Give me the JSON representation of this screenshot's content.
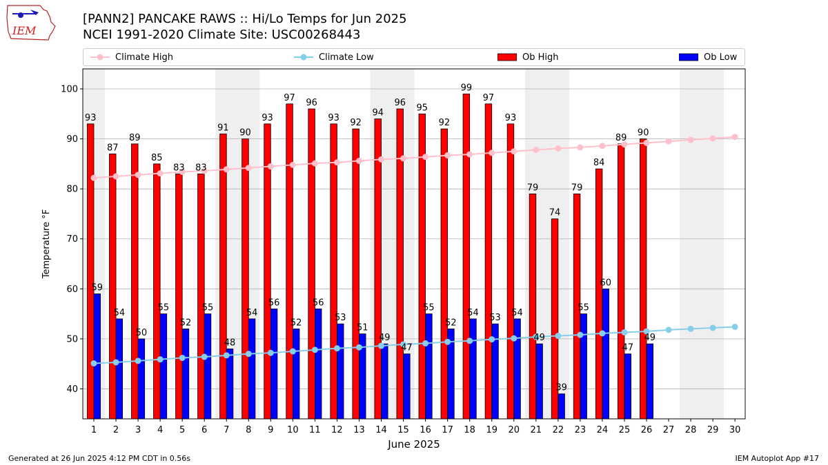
{
  "header": {
    "title_line1": "[PANN2] PANCAKE RAWS :: Hi/Lo Temps for Jun 2025",
    "title_line2": "NCEI 1991-2020 Climate Site: USC00268443",
    "logo_text": "IEM"
  },
  "footer": {
    "generated": "Generated at 26 Jun 2025 4:12 PM CDT in 0.56s",
    "app": "IEM Autoplot App #17"
  },
  "chart_data": {
    "type": "bar",
    "xlabel": "June 2025",
    "ylabel": "Temperature °F",
    "ylim": [
      34,
      104
    ],
    "yticks": [
      40,
      50,
      60,
      70,
      80,
      90,
      100
    ],
    "grid": "horizontal",
    "legend_position": "top",
    "weekend_shading": [
      1,
      7,
      8,
      14,
      15,
      21,
      22,
      28,
      29
    ],
    "categories": [
      "1",
      "2",
      "3",
      "4",
      "5",
      "6",
      "7",
      "8",
      "9",
      "10",
      "11",
      "12",
      "13",
      "14",
      "15",
      "16",
      "17",
      "18",
      "19",
      "20",
      "21",
      "22",
      "23",
      "24",
      "25",
      "26",
      "27",
      "28",
      "29",
      "30"
    ],
    "series": [
      {
        "name": "Climate High",
        "kind": "line",
        "color": "#ffc0cb",
        "values": [
          82.2,
          82.5,
          82.8,
          83.1,
          83.4,
          83.6,
          83.9,
          84.2,
          84.5,
          84.8,
          85.1,
          85.3,
          85.6,
          85.9,
          86.1,
          86.4,
          86.7,
          86.9,
          87.2,
          87.5,
          87.8,
          88.1,
          88.3,
          88.6,
          88.9,
          89.2,
          89.5,
          89.8,
          90.1,
          90.4
        ]
      },
      {
        "name": "Climate Low",
        "kind": "line",
        "color": "#87ceeb",
        "values": [
          45.1,
          45.3,
          45.6,
          45.9,
          46.2,
          46.4,
          46.7,
          47.0,
          47.2,
          47.5,
          47.8,
          48.1,
          48.3,
          48.6,
          48.9,
          49.1,
          49.4,
          49.6,
          49.9,
          50.1,
          50.4,
          50.6,
          50.8,
          51.1,
          51.3,
          51.5,
          51.8,
          52.0,
          52.2,
          52.4
        ]
      },
      {
        "name": "Ob High",
        "kind": "bar",
        "color": "#ff0000",
        "values": [
          93,
          87,
          89,
          85,
          83,
          83,
          91,
          90,
          93,
          97,
          96,
          93,
          92,
          94,
          96,
          95,
          92,
          99,
          97,
          93,
          79,
          74,
          79,
          84,
          89,
          90,
          null,
          null,
          null,
          null
        ]
      },
      {
        "name": "Ob Low",
        "kind": "bar",
        "color": "#0000ff",
        "values": [
          59,
          54,
          50,
          55,
          52,
          55,
          48,
          54,
          56,
          52,
          56,
          53,
          51,
          49,
          47,
          55,
          52,
          54,
          53,
          54,
          49,
          39,
          55,
          60,
          47,
          49,
          null,
          null,
          null,
          null
        ]
      }
    ]
  }
}
